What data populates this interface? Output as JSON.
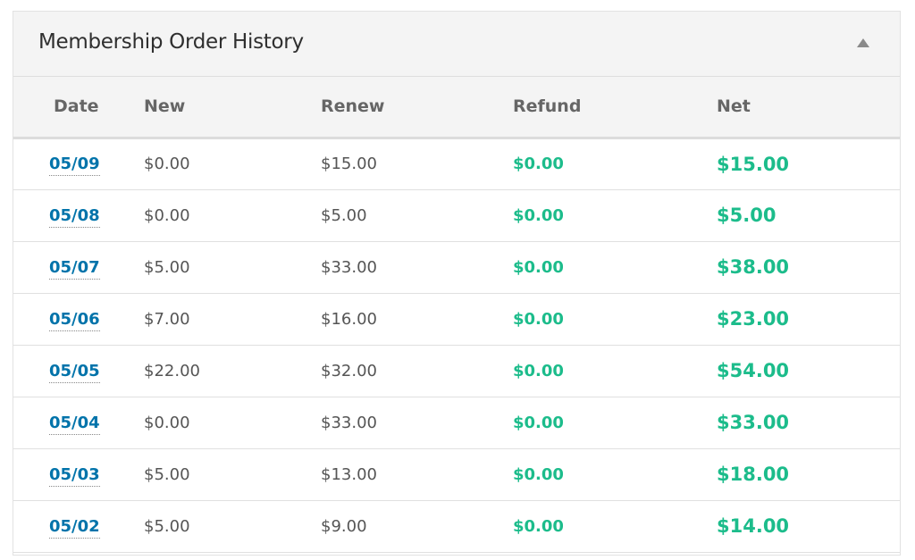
{
  "panel": {
    "title": "Membership Order History",
    "toggle_icon": "triangle-up-icon"
  },
  "columns": [
    "Date",
    "New",
    "Renew",
    "Refund",
    "Net"
  ],
  "colors": {
    "link": "#0073aa",
    "positive": "#1cbc8b",
    "text": "#555555"
  },
  "rows": [
    {
      "date": "05/09",
      "new": "$0.00",
      "renew": "$15.00",
      "refund": "$0.00",
      "net": "$15.00"
    },
    {
      "date": "05/08",
      "new": "$0.00",
      "renew": "$5.00",
      "refund": "$0.00",
      "net": "$5.00"
    },
    {
      "date": "05/07",
      "new": "$5.00",
      "renew": "$33.00",
      "refund": "$0.00",
      "net": "$38.00"
    },
    {
      "date": "05/06",
      "new": "$7.00",
      "renew": "$16.00",
      "refund": "$0.00",
      "net": "$23.00"
    },
    {
      "date": "05/05",
      "new": "$22.00",
      "renew": "$32.00",
      "refund": "$0.00",
      "net": "$54.00"
    },
    {
      "date": "05/04",
      "new": "$0.00",
      "renew": "$33.00",
      "refund": "$0.00",
      "net": "$33.00"
    },
    {
      "date": "05/03",
      "new": "$5.00",
      "renew": "$13.00",
      "refund": "$0.00",
      "net": "$18.00"
    },
    {
      "date": "05/02",
      "new": "$5.00",
      "renew": "$9.00",
      "refund": "$0.00",
      "net": "$14.00"
    }
  ]
}
